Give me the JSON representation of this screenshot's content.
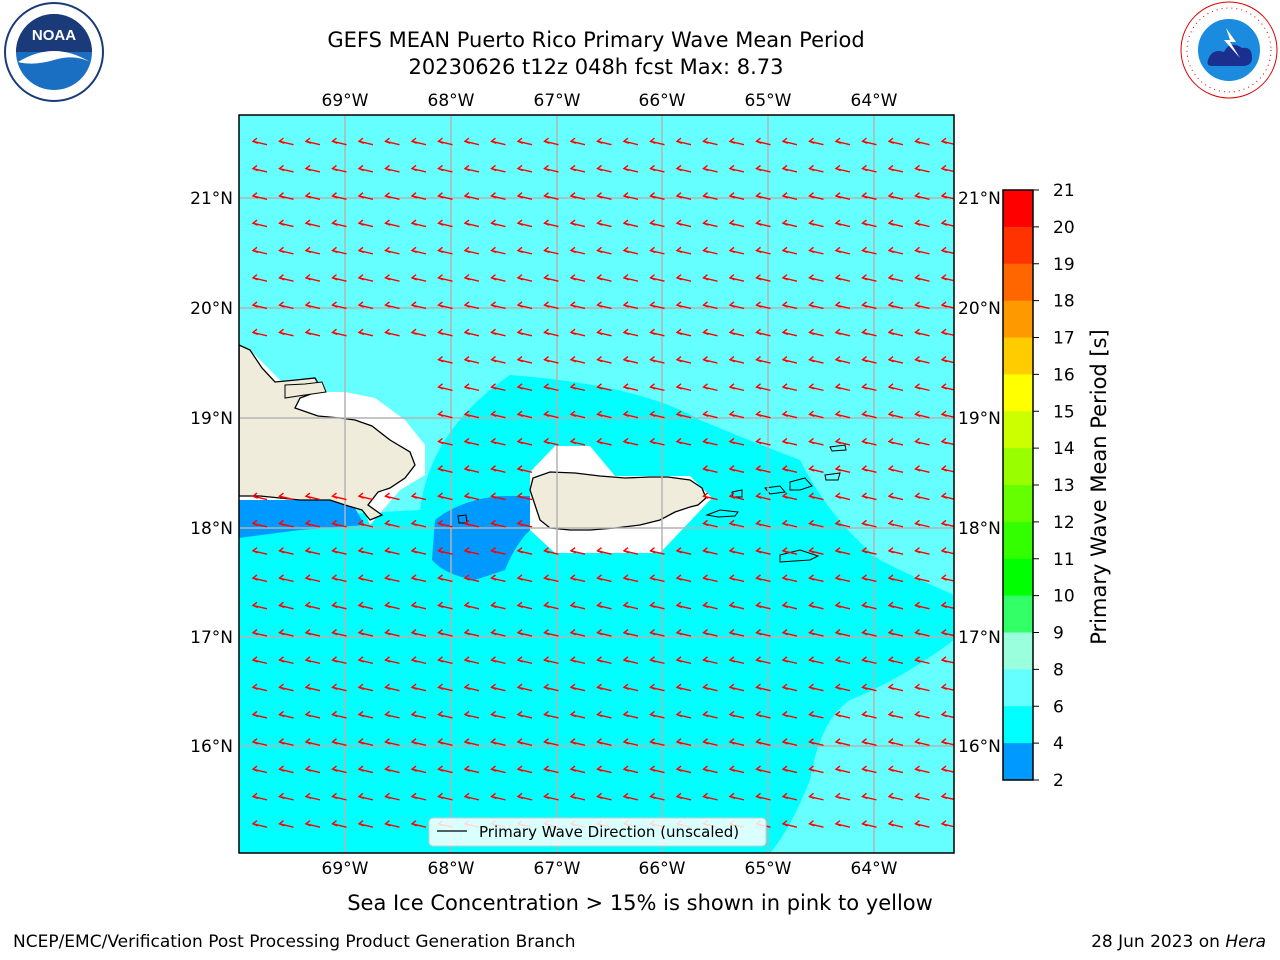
{
  "title": {
    "line1": "GEFS MEAN Puerto Rico Primary Wave Mean Period",
    "line2": "20230626 t12z 048h fcst   Max: 8.73"
  },
  "logos": {
    "left": "noaa-logo",
    "left_text": "NOAA",
    "right": "nws-logo",
    "right_text": "NATIONAL WEATHER SERVICE"
  },
  "axes": {
    "lon_labels": [
      "69°W",
      "68°W",
      "67°W",
      "66°W",
      "65°W",
      "64°W"
    ],
    "lat_labels": [
      "21°N",
      "20°N",
      "19°N",
      "18°N",
      "17°N",
      "16°N"
    ]
  },
  "legend": {
    "label": "Primary Wave Direction (unscaled)"
  },
  "colorbar": {
    "label": "Primary Wave Mean Period [s]",
    "ticks": [
      "21",
      "20",
      "19",
      "18",
      "17",
      "16",
      "15",
      "14",
      "13",
      "12",
      "11",
      "10",
      "9",
      "8",
      "6",
      "4",
      "2"
    ],
    "colors": [
      "#ff0000",
      "#ff3300",
      "#ff6600",
      "#ff9900",
      "#ffcc00",
      "#ffff00",
      "#ccff00",
      "#99ff00",
      "#66ff00",
      "#33ff00",
      "#00ff00",
      "#33ff66",
      "#99ffdd",
      "#66ffff",
      "#00ffff",
      "#0099ff",
      "#0000ff"
    ]
  },
  "note": "Sea Ice Concentration > 15% is shown in pink to yellow",
  "footer": {
    "left": "NCEP/EMC/Verification Post Processing Product Generation Branch",
    "right_prefix": "28 Jun 2023 on ",
    "right_italic": "Hera"
  },
  "colors": {
    "ocean_main": "#00ffff",
    "ocean_light": "#66ffff",
    "ocean_lighter": "#99ffff",
    "low_period": "#0099ff",
    "land": "#efecdc",
    "arrow": "#ff0000"
  }
}
